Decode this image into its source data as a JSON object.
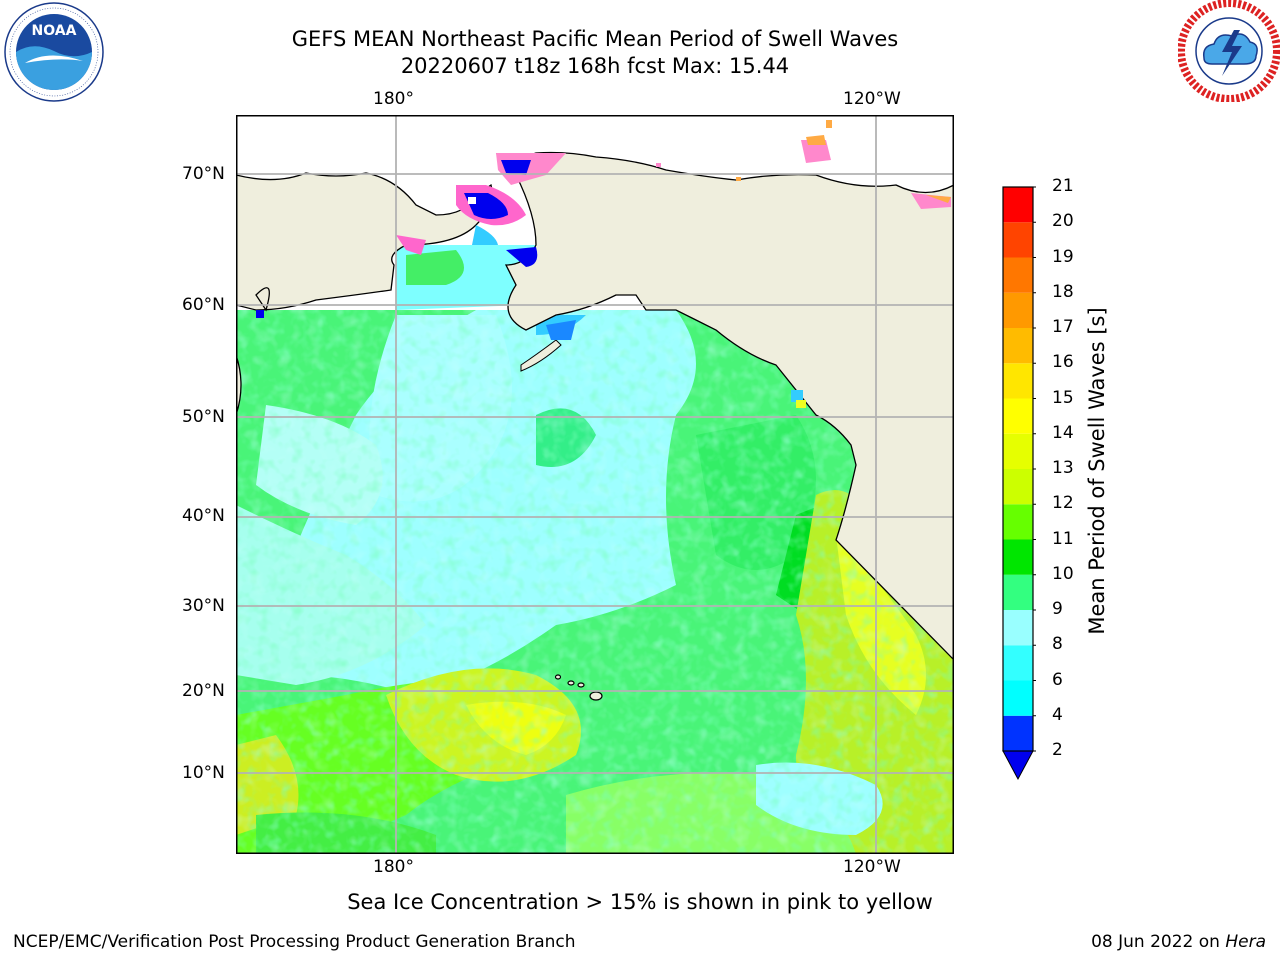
{
  "title": {
    "line1": "GEFS MEAN Northeast Pacific Mean Period of Swell Waves",
    "line2": "20220607 t18z 168h fcst   Max: 15.44"
  },
  "logos": {
    "noaa_text": "NOAA",
    "noaa_ring": "NATIONAL OCEANIC AND ATMOSPHERIC ADMINISTRATION · U.S. DEPARTMENT OF COMMERCE",
    "nws_ring": "NATIONAL WEATHER SERVICE"
  },
  "map": {
    "lon_labels_top": [
      "180°",
      "120°W"
    ],
    "lon_labels_bottom": [
      "180°",
      "120°W"
    ],
    "lat_labels": [
      "70°N",
      "60°N",
      "50°N",
      "40°N",
      "30°N",
      "20°N",
      "10°N"
    ]
  },
  "colorbar": {
    "label": "Mean Period of Swell Waves [s]",
    "ticks": [
      "2",
      "4",
      "6",
      "8",
      "9",
      "10",
      "11",
      "12",
      "13",
      "14",
      "15",
      "16",
      "17",
      "18",
      "19",
      "20",
      "21"
    ],
    "colors": [
      "#0033ff",
      "#00ffff",
      "#33ffff",
      "#99ffff",
      "#33ff80",
      "#00e600",
      "#66ff00",
      "#ccff00",
      "#e6ff00",
      "#ffff00",
      "#ffe600",
      "#ffbb00",
      "#ff9900",
      "#ff7700",
      "#ff4400",
      "#ff0000"
    ],
    "under_color": "#0000ee"
  },
  "annotation": "Sea Ice Concentration > 15% is shown in pink to yellow",
  "footer": {
    "left": "NCEP/EMC/Verification Post Processing Product Generation Branch",
    "right_prefix": "08 Jun 2022 on ",
    "right_italic": "Hera"
  }
}
